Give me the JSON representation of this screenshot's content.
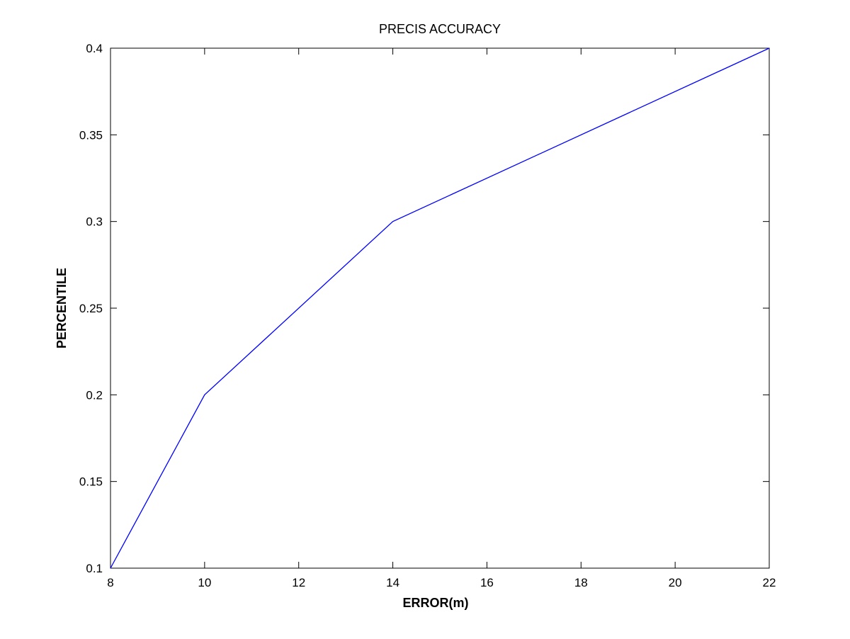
{
  "chart_data": {
    "type": "line",
    "title": "PRECIS ACCURACY",
    "xlabel": "ERROR(m)",
    "ylabel": "PERCENTILE",
    "xlim": [
      8,
      22
    ],
    "ylim": [
      0.1,
      0.4
    ],
    "xticks": [
      "8",
      "10",
      "12",
      "14",
      "16",
      "18",
      "20",
      "22"
    ],
    "yticks": [
      "0.1",
      "0.15",
      "0.2",
      "0.25",
      "0.3",
      "0.35",
      "0.4"
    ],
    "grid": false,
    "legend": "none",
    "series": [
      {
        "color": "#0000ff",
        "x": [
          8,
          10,
          14,
          22
        ],
        "y": [
          0.1,
          0.2,
          0.3,
          0.4
        ]
      }
    ]
  }
}
